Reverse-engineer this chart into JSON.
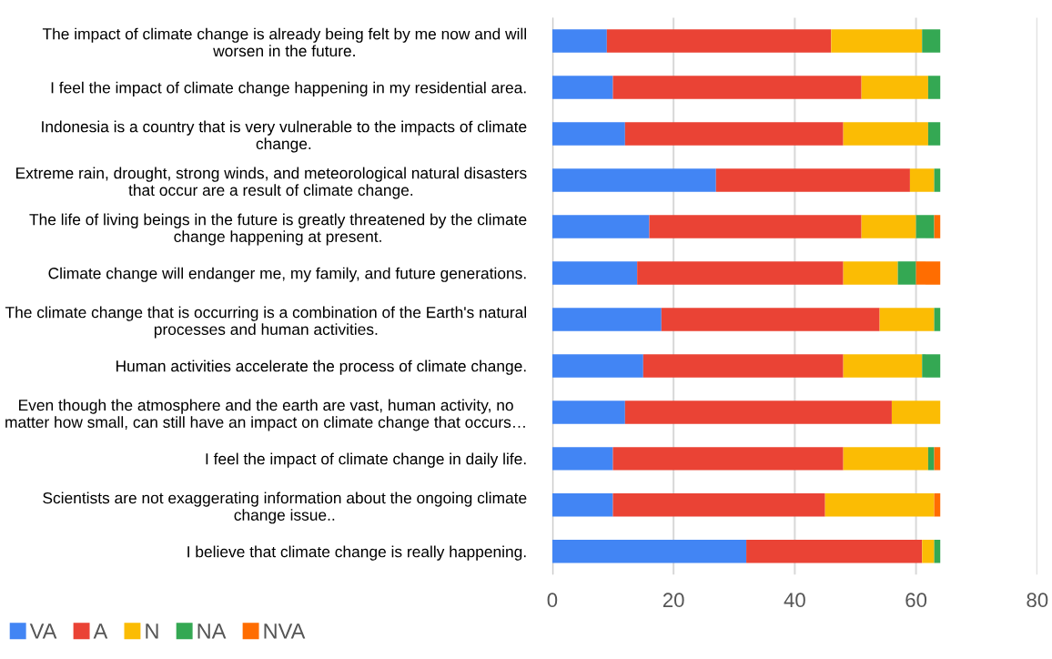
{
  "chart_data": {
    "type": "bar",
    "orientation": "horizontal",
    "stacked": true,
    "categories": [
      "The impact of climate change is already being felt by me now and will\nworsen in the future.",
      "I feel the impact of climate change happening in my residential area.",
      "Indonesia is a country that is very vulnerable to the impacts of climate\nchange.",
      "Extreme rain, drought, strong winds, and meteorological natural disasters\nthat occur are a result of climate change.",
      "The life of living beings in the future is greatly threatened by the climate\nchange happening at present.",
      "Climate change will endanger me, my family, and future generations.",
      "The climate change that is occurring is a combination of the Earth's natural\nprocesses and human activities.",
      "Human activities accelerate the process of climate change.",
      "Even though the atmosphere and the earth are vast, human activity, no\nmatter how small, can still have an impact on climate change that occurs…",
      "I feel the impact of climate change in daily life.",
      "Scientists are not exaggerating information about the ongoing climate\nchange issue..",
      "I believe that climate change is really happening."
    ],
    "series": [
      {
        "name": "VA",
        "color": "#4285f4",
        "values": [
          9,
          10,
          12,
          27,
          16,
          14,
          18,
          15,
          12,
          10,
          10,
          32
        ]
      },
      {
        "name": "A",
        "color": "#ea4335",
        "values": [
          37,
          41,
          36,
          32,
          35,
          34,
          36,
          33,
          44,
          38,
          35,
          29
        ]
      },
      {
        "name": "N",
        "color": "#fbbc04",
        "values": [
          15,
          11,
          14,
          4,
          9,
          9,
          9,
          13,
          8,
          14,
          18,
          2
        ]
      },
      {
        "name": "NA",
        "color": "#34a853",
        "values": [
          3,
          2,
          2,
          1,
          3,
          3,
          1,
          3,
          0,
          1,
          0,
          1
        ]
      },
      {
        "name": "NVA",
        "color": "#ff6d01",
        "values": [
          0,
          0,
          0,
          0,
          1,
          4,
          0,
          0,
          0,
          1,
          1,
          0
        ]
      }
    ],
    "xlim": [
      0,
      80
    ],
    "xticks": [
      0,
      20,
      40,
      60,
      80
    ],
    "grid": "x",
    "legend": "bottom"
  }
}
